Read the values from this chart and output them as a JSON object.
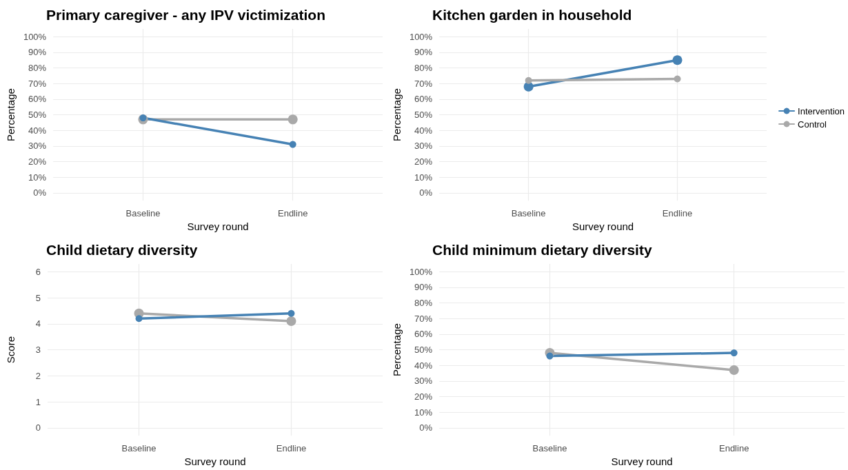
{
  "chart_data": [
    {
      "type": "line",
      "title": "Primary caregiver - any IPV victimization",
      "xlabel": "Survey round",
      "ylabel": "Percentage",
      "categories": [
        "Baseline",
        "Endline"
      ],
      "marker": "circle",
      "grid": true,
      "legend": false,
      "ylim": [
        -5,
        105
      ],
      "yticks": [
        {
          "value": 0,
          "label": "0%"
        },
        {
          "value": 10,
          "label": "10%"
        },
        {
          "value": 20,
          "label": "20%"
        },
        {
          "value": 30,
          "label": "30%"
        },
        {
          "value": 40,
          "label": "40%"
        },
        {
          "value": 50,
          "label": "50%"
        },
        {
          "value": 60,
          "label": "60%"
        },
        {
          "value": 70,
          "label": "70%"
        },
        {
          "value": 80,
          "label": "80%"
        },
        {
          "value": 90,
          "label": "90%"
        },
        {
          "value": 100,
          "label": "100%"
        }
      ],
      "series": [
        {
          "color": "#a9a9a9",
          "values": [
            47,
            47
          ]
        },
        {
          "color": "#4682b4",
          "values": [
            48,
            31
          ]
        }
      ]
    },
    {
      "type": "line",
      "title": "Kitchen garden in household",
      "xlabel": "Survey round",
      "ylabel": "Percentage",
      "categories": [
        "Baseline",
        "Endline"
      ],
      "marker": "circle",
      "grid": true,
      "legend": "right",
      "ylim": [
        -5,
        105
      ],
      "yticks": [
        {
          "value": 0,
          "label": "0%"
        },
        {
          "value": 10,
          "label": "10%"
        },
        {
          "value": 20,
          "label": "20%"
        },
        {
          "value": 30,
          "label": "30%"
        },
        {
          "value": 40,
          "label": "40%"
        },
        {
          "value": 50,
          "label": "50%"
        },
        {
          "value": 60,
          "label": "60%"
        },
        {
          "value": 70,
          "label": "70%"
        },
        {
          "value": 80,
          "label": "80%"
        },
        {
          "value": 90,
          "label": "90%"
        },
        {
          "value": 100,
          "label": "100%"
        }
      ],
      "series": [
        {
          "name": "Intervention",
          "color": "#4682b4",
          "values": [
            68,
            85
          ]
        },
        {
          "name": "Control",
          "color": "#a9a9a9",
          "values": [
            72,
            73
          ]
        }
      ]
    },
    {
      "type": "line",
      "title": "Child dietary diversity",
      "xlabel": "Survey round",
      "ylabel": "Score",
      "categories": [
        "Baseline",
        "Endline"
      ],
      "marker": "circle",
      "grid": true,
      "legend": false,
      "ylim": [
        -0.3,
        6.3
      ],
      "yticks": [
        0,
        1,
        2,
        3,
        4,
        5,
        6
      ],
      "series": [
        {
          "color": "#a9a9a9",
          "values": [
            4.4,
            4.1
          ]
        },
        {
          "color": "#4682b4",
          "values": [
            4.2,
            4.4
          ]
        }
      ]
    },
    {
      "type": "line",
      "title": "Child minimum dietary diversity",
      "xlabel": "Survey round",
      "ylabel": "Percentage",
      "categories": [
        "Baseline",
        "Endline"
      ],
      "marker": "circle",
      "grid": true,
      "legend": false,
      "ylim": [
        -5,
        105
      ],
      "yticks": [
        {
          "value": 0,
          "label": "0%"
        },
        {
          "value": 10,
          "label": "10%"
        },
        {
          "value": 20,
          "label": "20%"
        },
        {
          "value": 30,
          "label": "30%"
        },
        {
          "value": 40,
          "label": "40%"
        },
        {
          "value": 50,
          "label": "50%"
        },
        {
          "value": 60,
          "label": "60%"
        },
        {
          "value": 70,
          "label": "70%"
        },
        {
          "value": 80,
          "label": "80%"
        },
        {
          "value": 90,
          "label": "90%"
        },
        {
          "value": 100,
          "label": "100%"
        }
      ],
      "series": [
        {
          "color": "#a9a9a9",
          "values": [
            48,
            37
          ]
        },
        {
          "color": "#4682b4",
          "values": [
            46,
            48
          ]
        }
      ]
    }
  ]
}
